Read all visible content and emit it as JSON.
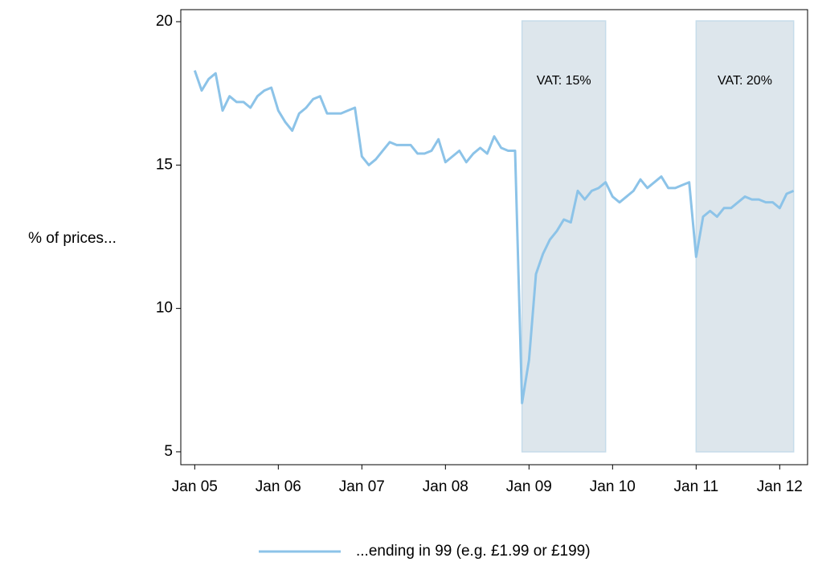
{
  "chart_data": {
    "type": "line",
    "y_label": "% of prices...",
    "x": [
      "2005-01",
      "2005-02",
      "2005-03",
      "2005-04",
      "2005-05",
      "2005-06",
      "2005-07",
      "2005-08",
      "2005-09",
      "2005-10",
      "2005-11",
      "2005-12",
      "2006-01",
      "2006-02",
      "2006-03",
      "2006-04",
      "2006-05",
      "2006-06",
      "2006-07",
      "2006-08",
      "2006-09",
      "2006-10",
      "2006-11",
      "2006-12",
      "2007-01",
      "2007-02",
      "2007-03",
      "2007-04",
      "2007-05",
      "2007-06",
      "2007-07",
      "2007-08",
      "2007-09",
      "2007-10",
      "2007-11",
      "2007-12",
      "2008-01",
      "2008-02",
      "2008-03",
      "2008-04",
      "2008-05",
      "2008-06",
      "2008-07",
      "2008-08",
      "2008-09",
      "2008-10",
      "2008-11",
      "2008-12",
      "2009-01",
      "2009-02",
      "2009-03",
      "2009-04",
      "2009-05",
      "2009-06",
      "2009-07",
      "2009-08",
      "2009-09",
      "2009-10",
      "2009-11",
      "2009-12",
      "2010-01",
      "2010-02",
      "2010-03",
      "2010-04",
      "2010-05",
      "2010-06",
      "2010-07",
      "2010-08",
      "2010-09",
      "2010-10",
      "2010-11",
      "2010-12",
      "2011-01",
      "2011-02",
      "2011-03",
      "2011-04",
      "2011-05",
      "2011-06",
      "2011-07",
      "2011-08",
      "2011-09",
      "2011-10",
      "2011-11",
      "2011-12",
      "2012-01",
      "2012-02",
      "2012-03"
    ],
    "series": [
      {
        "name": "...ending in 99 (e.g. £1.99 or £199)",
        "color": "#8cc3e8",
        "values": [
          18.3,
          17.6,
          18.0,
          18.2,
          16.9,
          17.4,
          17.2,
          17.2,
          17.0,
          17.4,
          17.6,
          17.7,
          16.9,
          16.5,
          16.2,
          16.8,
          17.0,
          17.3,
          17.4,
          16.8,
          16.8,
          16.8,
          16.9,
          17.0,
          15.3,
          15.0,
          15.2,
          15.5,
          15.8,
          15.7,
          15.7,
          15.7,
          15.4,
          15.4,
          15.5,
          15.9,
          15.1,
          15.3,
          15.5,
          15.1,
          15.4,
          15.6,
          15.4,
          16.0,
          15.6,
          15.5,
          15.5,
          6.7,
          8.2,
          11.2,
          11.9,
          12.4,
          12.7,
          13.1,
          13.0,
          14.1,
          13.8,
          14.1,
          14.2,
          14.4,
          13.9,
          13.7,
          13.9,
          14.1,
          14.5,
          14.2,
          14.4,
          14.6,
          14.2,
          14.2,
          14.3,
          14.4,
          11.8,
          13.2,
          13.4,
          13.2,
          13.5,
          13.5,
          13.7,
          13.9,
          13.8,
          13.8,
          13.7,
          13.7,
          13.5,
          14.0,
          14.1
        ]
      }
    ],
    "shaded_regions": [
      {
        "start": "2008-12",
        "end": "2009-12",
        "label": "VAT: 15%"
      },
      {
        "start": "2011-01",
        "end": "2012-03",
        "label": "VAT: 20%"
      }
    ],
    "xlim": [
      "2004-11",
      "2012-05"
    ],
    "xticks": [
      {
        "value": "2005-01",
        "label": "Jan 05"
      },
      {
        "value": "2006-01",
        "label": "Jan 06"
      },
      {
        "value": "2007-01",
        "label": "Jan 07"
      },
      {
        "value": "2008-01",
        "label": "Jan 08"
      },
      {
        "value": "2009-01",
        "label": "Jan 09"
      },
      {
        "value": "2010-01",
        "label": "Jan 10"
      },
      {
        "value": "2011-01",
        "label": "Jan 11"
      },
      {
        "value": "2012-01",
        "label": "Jan 12"
      }
    ],
    "ylim": [
      4.55,
      20.42
    ],
    "yticks": [
      5,
      10,
      15,
      20
    ],
    "grid": false,
    "legend": "bottom"
  }
}
